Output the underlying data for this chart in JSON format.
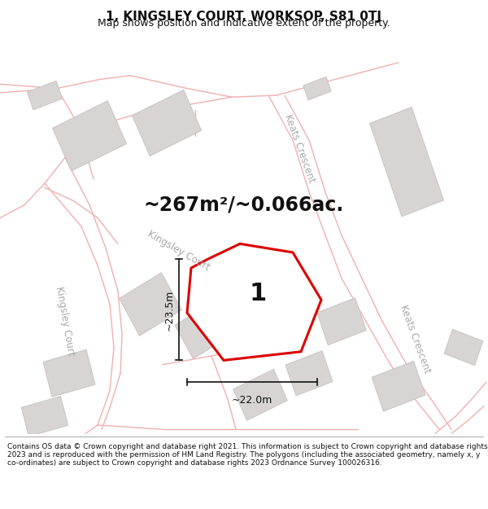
{
  "title": "1, KINGSLEY COURT, WORKSOP, S81 0TJ",
  "subtitle": "Map shows position and indicative extent of the property.",
  "area_text": "~267m²/~0.066ac.",
  "dimension_h": "~23.5m",
  "dimension_w": "~22.0m",
  "plot_number": "1",
  "footer": "Contains OS data © Crown copyright and database right 2021. This information is subject to Crown copyright and database rights 2023 and is reproduced with the permission of HM Land Registry. The polygons (including the associated geometry, namely x, y co-ordinates) are subject to Crown copyright and database rights 2023 Ordnance Survey 100026316.",
  "bg_color": "#f7f2f2",
  "road_color": "#f0b0b0",
  "building_color": "#d8d4d4",
  "building_edge": "#c8c0c0",
  "plot_fill": "#ffffff",
  "plot_edge": "#dd0000",
  "street_label_color": "#aaa8a8",
  "dim_color": "#222222",
  "title_fontsize": 11,
  "subtitle_fontsize": 9,
  "footer_fontsize": 6.5,
  "area_fontsize": 17,
  "plot_num_fontsize": 22,
  "street_fontsize": 8.5,
  "dim_fontsize": 9
}
